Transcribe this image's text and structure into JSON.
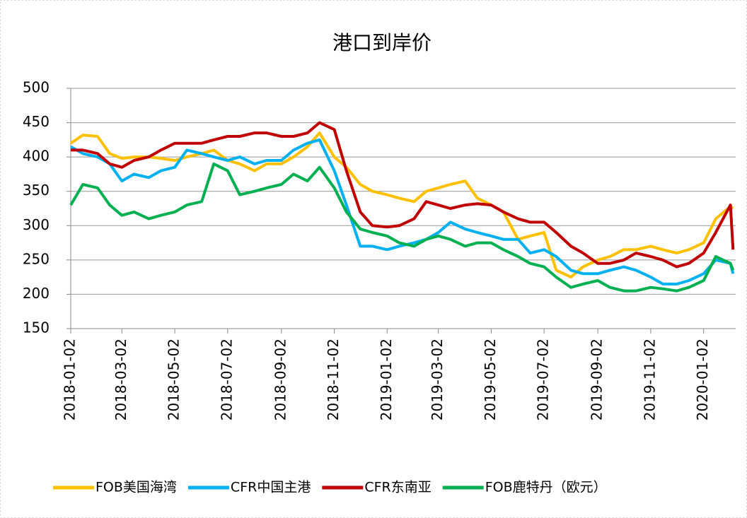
{
  "chart_data": {
    "type": "line",
    "title": "港口到岸价",
    "x": [
      "2018-01-02",
      "2018-01-16",
      "2018-02-02",
      "2018-02-16",
      "2018-03-02",
      "2018-03-16",
      "2018-04-02",
      "2018-04-16",
      "2018-05-02",
      "2018-05-16",
      "2018-06-02",
      "2018-06-16",
      "2018-07-02",
      "2018-07-16",
      "2018-08-02",
      "2018-08-16",
      "2018-09-02",
      "2018-09-16",
      "2018-10-02",
      "2018-10-16",
      "2018-11-02",
      "2018-11-16",
      "2018-12-02",
      "2018-12-16",
      "2019-01-02",
      "2019-01-16",
      "2019-02-02",
      "2019-02-16",
      "2019-03-02",
      "2019-03-16",
      "2019-04-02",
      "2019-04-16",
      "2019-05-02",
      "2019-05-16",
      "2019-06-02",
      "2019-06-16",
      "2019-07-02",
      "2019-07-16",
      "2019-08-02",
      "2019-08-16",
      "2019-09-02",
      "2019-09-16",
      "2019-10-02",
      "2019-10-16",
      "2019-11-02",
      "2019-11-16",
      "2019-12-02",
      "2019-12-16",
      "2020-01-02",
      "2020-01-16",
      "2020-02-02",
      "2020-02-05"
    ],
    "series": [
      {
        "name": "FOB美国海湾",
        "color": "#ffc000",
        "values": [
          420,
          432,
          430,
          405,
          398,
          400,
          400,
          398,
          395,
          400,
          405,
          410,
          395,
          390,
          380,
          390,
          390,
          400,
          415,
          435,
          400,
          385,
          360,
          350,
          345,
          340,
          335,
          350,
          355,
          360,
          365,
          340,
          330,
          320,
          280,
          285,
          290,
          235,
          225,
          240,
          250,
          255,
          265,
          265,
          270,
          265,
          260,
          265,
          275,
          310,
          328,
          325
        ]
      },
      {
        "name": "CFR中国主港",
        "color": "#00b0f0",
        "values": [
          415,
          405,
          400,
          390,
          365,
          375,
          370,
          380,
          385,
          410,
          405,
          400,
          395,
          400,
          390,
          395,
          395,
          410,
          420,
          425,
          380,
          330,
          270,
          270,
          265,
          270,
          275,
          280,
          290,
          305,
          295,
          290,
          285,
          280,
          280,
          260,
          265,
          255,
          235,
          230,
          230,
          235,
          240,
          235,
          225,
          215,
          215,
          220,
          230,
          250,
          245,
          230
        ]
      },
      {
        "name": "CFR东南亚",
        "color": "#c00000",
        "values": [
          410,
          410,
          405,
          390,
          385,
          395,
          400,
          410,
          420,
          420,
          420,
          425,
          430,
          430,
          435,
          435,
          430,
          430,
          435,
          450,
          440,
          380,
          320,
          300,
          298,
          300,
          310,
          335,
          330,
          325,
          330,
          332,
          330,
          320,
          310,
          305,
          305,
          290,
          270,
          260,
          245,
          245,
          250,
          260,
          255,
          250,
          240,
          245,
          260,
          290,
          330,
          265
        ]
      },
      {
        "name": "FOB鹿特丹（欧元）",
        "color": "#00b050",
        "values": [
          330,
          360,
          355,
          330,
          315,
          320,
          310,
          315,
          320,
          330,
          335,
          390,
          380,
          345,
          350,
          355,
          360,
          375,
          365,
          385,
          355,
          320,
          295,
          290,
          285,
          275,
          270,
          280,
          285,
          280,
          270,
          275,
          275,
          265,
          255,
          245,
          240,
          225,
          210,
          215,
          220,
          210,
          205,
          205,
          210,
          208,
          205,
          210,
          220,
          255,
          245,
          235
        ]
      }
    ],
    "xlim": [
      "2018-01-02",
      "2020-02-08"
    ],
    "xticks": [
      "2018-01-02",
      "2018-03-02",
      "2018-05-02",
      "2018-07-02",
      "2018-09-02",
      "2018-11-02",
      "2019-01-02",
      "2019-03-02",
      "2019-05-02",
      "2019-07-02",
      "2019-09-02",
      "2019-11-02",
      "2020-01-02"
    ],
    "ylim": [
      150,
      500
    ],
    "yticks": [
      150,
      200,
      250,
      300,
      350,
      400,
      450,
      500
    ],
    "grid": true,
    "legend": "bottom"
  }
}
